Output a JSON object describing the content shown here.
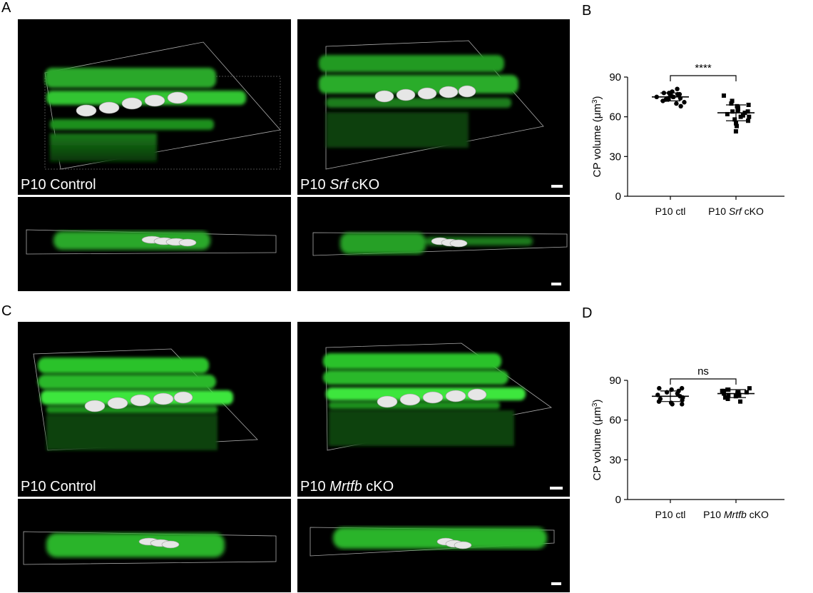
{
  "figure": {
    "panels": {
      "A": "A",
      "B": "B",
      "C": "C",
      "D": "D"
    },
    "panel_A": {
      "left_label": "P10 Control",
      "right_label_prefix": "P10 ",
      "right_label_gene": "Srf",
      "right_label_suffix": " cKO"
    },
    "panel_C": {
      "left_label": "P10 Control",
      "right_label_prefix": "P10 ",
      "right_label_gene": "Mrtfb",
      "right_label_suffix": " cKO"
    }
  },
  "colors": {
    "hair_cell_green": "#3cff3c",
    "cuticular_plate_white": "#e6e6e6",
    "background_black": "#000000"
  },
  "chart_data": [
    {
      "type": "scatter",
      "panel": "B",
      "ylabel": "CP volume (μm³)",
      "ylabel_main": "CP volume (",
      "ylabel_unit": "μm",
      "ylabel_sup": "3",
      "ylabel_close": ")",
      "ylim": [
        0,
        90
      ],
      "yticks": [
        "0",
        "30",
        "60",
        "90"
      ],
      "categories": [
        "P10 ctl",
        "P10 Srf cKO"
      ],
      "category_labels": [
        {
          "prefix": "P10 ctl",
          "gene": "",
          "suffix": ""
        },
        {
          "prefix": "P10 ",
          "gene": "Srf",
          "suffix": " cKO"
        }
      ],
      "significance": "****",
      "series": [
        {
          "marker": "circle",
          "values": [
            81,
            79,
            78,
            78,
            77,
            77,
            76,
            76,
            76,
            75,
            75,
            75,
            74,
            74,
            73,
            73,
            72,
            71,
            70,
            68
          ],
          "mean": 75,
          "sd": 3
        },
        {
          "marker": "square",
          "values": [
            76,
            72,
            70,
            69,
            68,
            67,
            66,
            66,
            65,
            64,
            64,
            63,
            62,
            61,
            60,
            60,
            58,
            57,
            55,
            53,
            49
          ],
          "mean": 63,
          "sd": 6
        }
      ]
    },
    {
      "type": "scatter",
      "panel": "D",
      "ylabel": "CP volume (μm³)",
      "ylabel_main": "CP volume (",
      "ylabel_unit": "μm",
      "ylabel_sup": "3",
      "ylabel_close": ")",
      "ylim": [
        0,
        90
      ],
      "yticks": [
        "0",
        "30",
        "60",
        "90"
      ],
      "categories": [
        "P10 ctl",
        "P10 Mrtfb cKO"
      ],
      "category_labels": [
        {
          "prefix": "P10 ctl",
          "gene": "",
          "suffix": ""
        },
        {
          "prefix": "P10 ",
          "gene": "Mrtfb",
          "suffix": " cKO"
        }
      ],
      "significance": "ns",
      "series": [
        {
          "marker": "circle",
          "values": [
            84,
            84,
            83,
            82,
            81,
            80,
            79,
            78,
            77,
            76,
            75,
            74,
            73,
            72,
            72
          ],
          "mean": 78,
          "sd": 4
        },
        {
          "marker": "square",
          "values": [
            84,
            83,
            83,
            82,
            82,
            81,
            81,
            80,
            80,
            79,
            79,
            78,
            77,
            76,
            74
          ],
          "mean": 80,
          "sd": 3
        }
      ]
    }
  ]
}
